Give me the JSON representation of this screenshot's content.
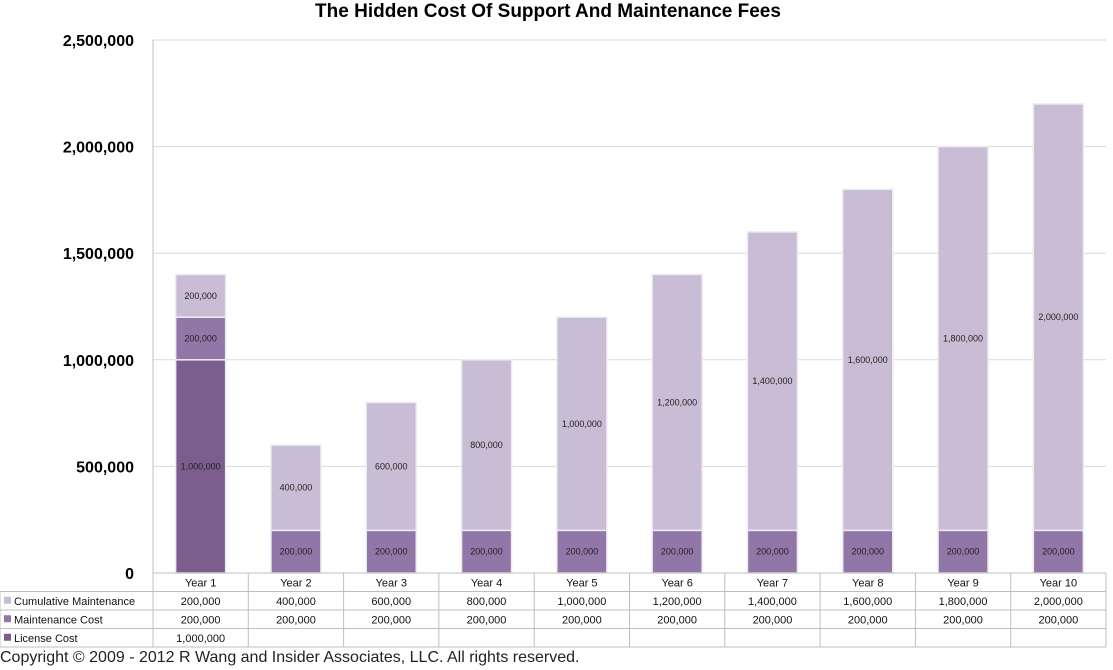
{
  "chart_data": {
    "type": "bar",
    "stacked": true,
    "title": "The Hidden Cost Of Support And Maintenance Fees",
    "categories": [
      "Year 1",
      "Year 2",
      "Year 3",
      "Year 4",
      "Year 5",
      "Year 6",
      "Year 7",
      "Year 8",
      "Year 9",
      "Year 10"
    ],
    "series": [
      {
        "name": "License Cost",
        "color": "#7b5d8e",
        "values": [
          1000000,
          null,
          null,
          null,
          null,
          null,
          null,
          null,
          null,
          null
        ]
      },
      {
        "name": "Maintenance Cost",
        "color": "#9176a8",
        "values": [
          200000,
          200000,
          200000,
          200000,
          200000,
          200000,
          200000,
          200000,
          200000,
          200000
        ]
      },
      {
        "name": "Cumulative Maintenance",
        "color": "#c8bdd4",
        "values": [
          200000,
          400000,
          600000,
          800000,
          1000000,
          1200000,
          1400000,
          1600000,
          1800000,
          2000000
        ]
      }
    ],
    "ylim": [
      0,
      2500000
    ],
    "yticks": [
      0,
      500000,
      1000000,
      1500000,
      2000000,
      2500000
    ],
    "ytick_labels": [
      "0",
      "500,000",
      "1,000,000",
      "1,500,000",
      "2,000,000",
      "2,500,000"
    ],
    "grid": true,
    "legend": "data table below chart"
  },
  "table_rows": [
    {
      "name": "Cumulative Maintenance",
      "color": "#c8bdd4",
      "cells": [
        "200,000",
        "400,000",
        "600,000",
        "800,000",
        "1,000,000",
        "1,200,000",
        "1,400,000",
        "1,600,000",
        "1,800,000",
        "2,000,000"
      ]
    },
    {
      "name": "Maintenance Cost",
      "color": "#9176a8",
      "cells": [
        "200,000",
        "200,000",
        "200,000",
        "200,000",
        "200,000",
        "200,000",
        "200,000",
        "200,000",
        "200,000",
        "200,000"
      ]
    },
    {
      "name": "License Cost",
      "color": "#7b5d8e",
      "cells": [
        "1,000,000",
        "",
        "",
        "",
        "",
        "",
        "",
        "",
        "",
        ""
      ]
    }
  ],
  "segment_labels": [
    [
      "1,000,000",
      "200,000",
      "200,000"
    ],
    [
      "",
      "200,000",
      "400,000"
    ],
    [
      "",
      "200,000",
      "600,000"
    ],
    [
      "",
      "200,000",
      "800,000"
    ],
    [
      "",
      "200,000",
      "1,000,000"
    ],
    [
      "",
      "200,000",
      "1,200,000"
    ],
    [
      "",
      "200,000",
      "1,400,000"
    ],
    [
      "",
      "200,000",
      "1,600,000"
    ],
    [
      "",
      "200,000",
      "1,800,000"
    ],
    [
      "",
      "200,000",
      "2,000,000"
    ]
  ],
  "copyright": "Copyright © 2009 - 2012 R Wang and Insider Associates, LLC. All rights reserved."
}
